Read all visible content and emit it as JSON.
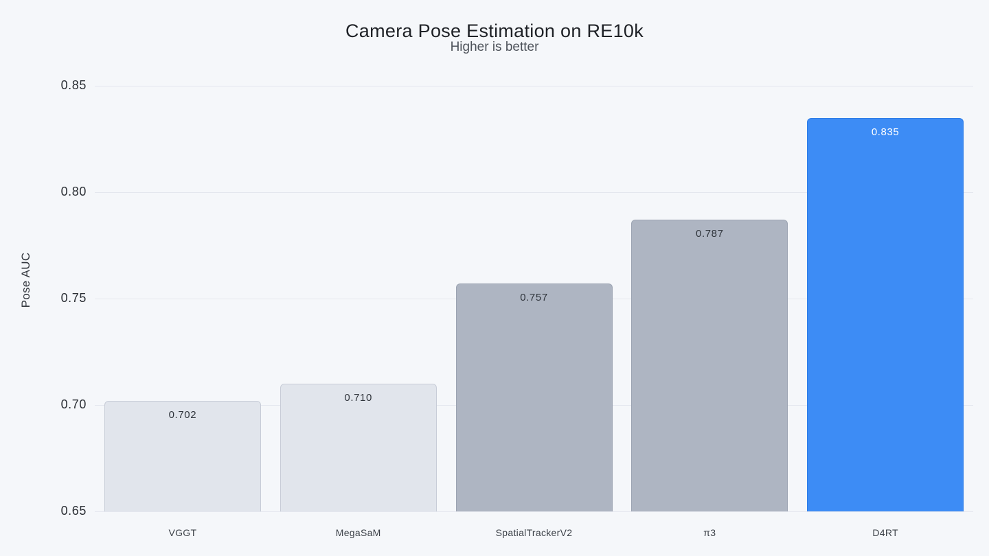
{
  "page": {
    "background_color": "#f5f7fa"
  },
  "chart_data": {
    "type": "bar",
    "title": "Camera Pose Estimation on RE10k",
    "subtitle": "Higher is better",
    "xlabel": "",
    "ylabel": "Pose AUC",
    "categories": [
      "VGGT",
      "MegaSaM",
      "SpatialTrackerV2",
      "π3",
      "D4RT"
    ],
    "values": [
      0.702,
      0.71,
      0.757,
      0.787,
      0.835
    ],
    "value_labels": [
      "0.702",
      "0.710",
      "0.757",
      "0.787",
      "0.835"
    ],
    "bar_styles": [
      "low",
      "low",
      "mid",
      "mid",
      "highlight"
    ],
    "highlighted_category": "D4RT",
    "ylim": [
      0.65,
      0.85
    ],
    "yticks": [
      0.65,
      0.7,
      0.75,
      0.8,
      0.85
    ],
    "ytick_labels": [
      "0.65",
      "0.70",
      "0.75",
      "0.80",
      "0.85"
    ],
    "grid": true,
    "legend": "none",
    "styles": {
      "low": {
        "fill": "#e1e5ec",
        "border": "#c7ccd7",
        "label": "#2f343b"
      },
      "mid": {
        "fill": "#aeb5c2",
        "border": "#9ca4b2",
        "label": "#2f343b"
      },
      "highlight": {
        "fill": "#3d8cf5",
        "border": "#2d7ce8",
        "label": "#ffffff"
      }
    },
    "gridline_color": "#e4e7ee"
  }
}
